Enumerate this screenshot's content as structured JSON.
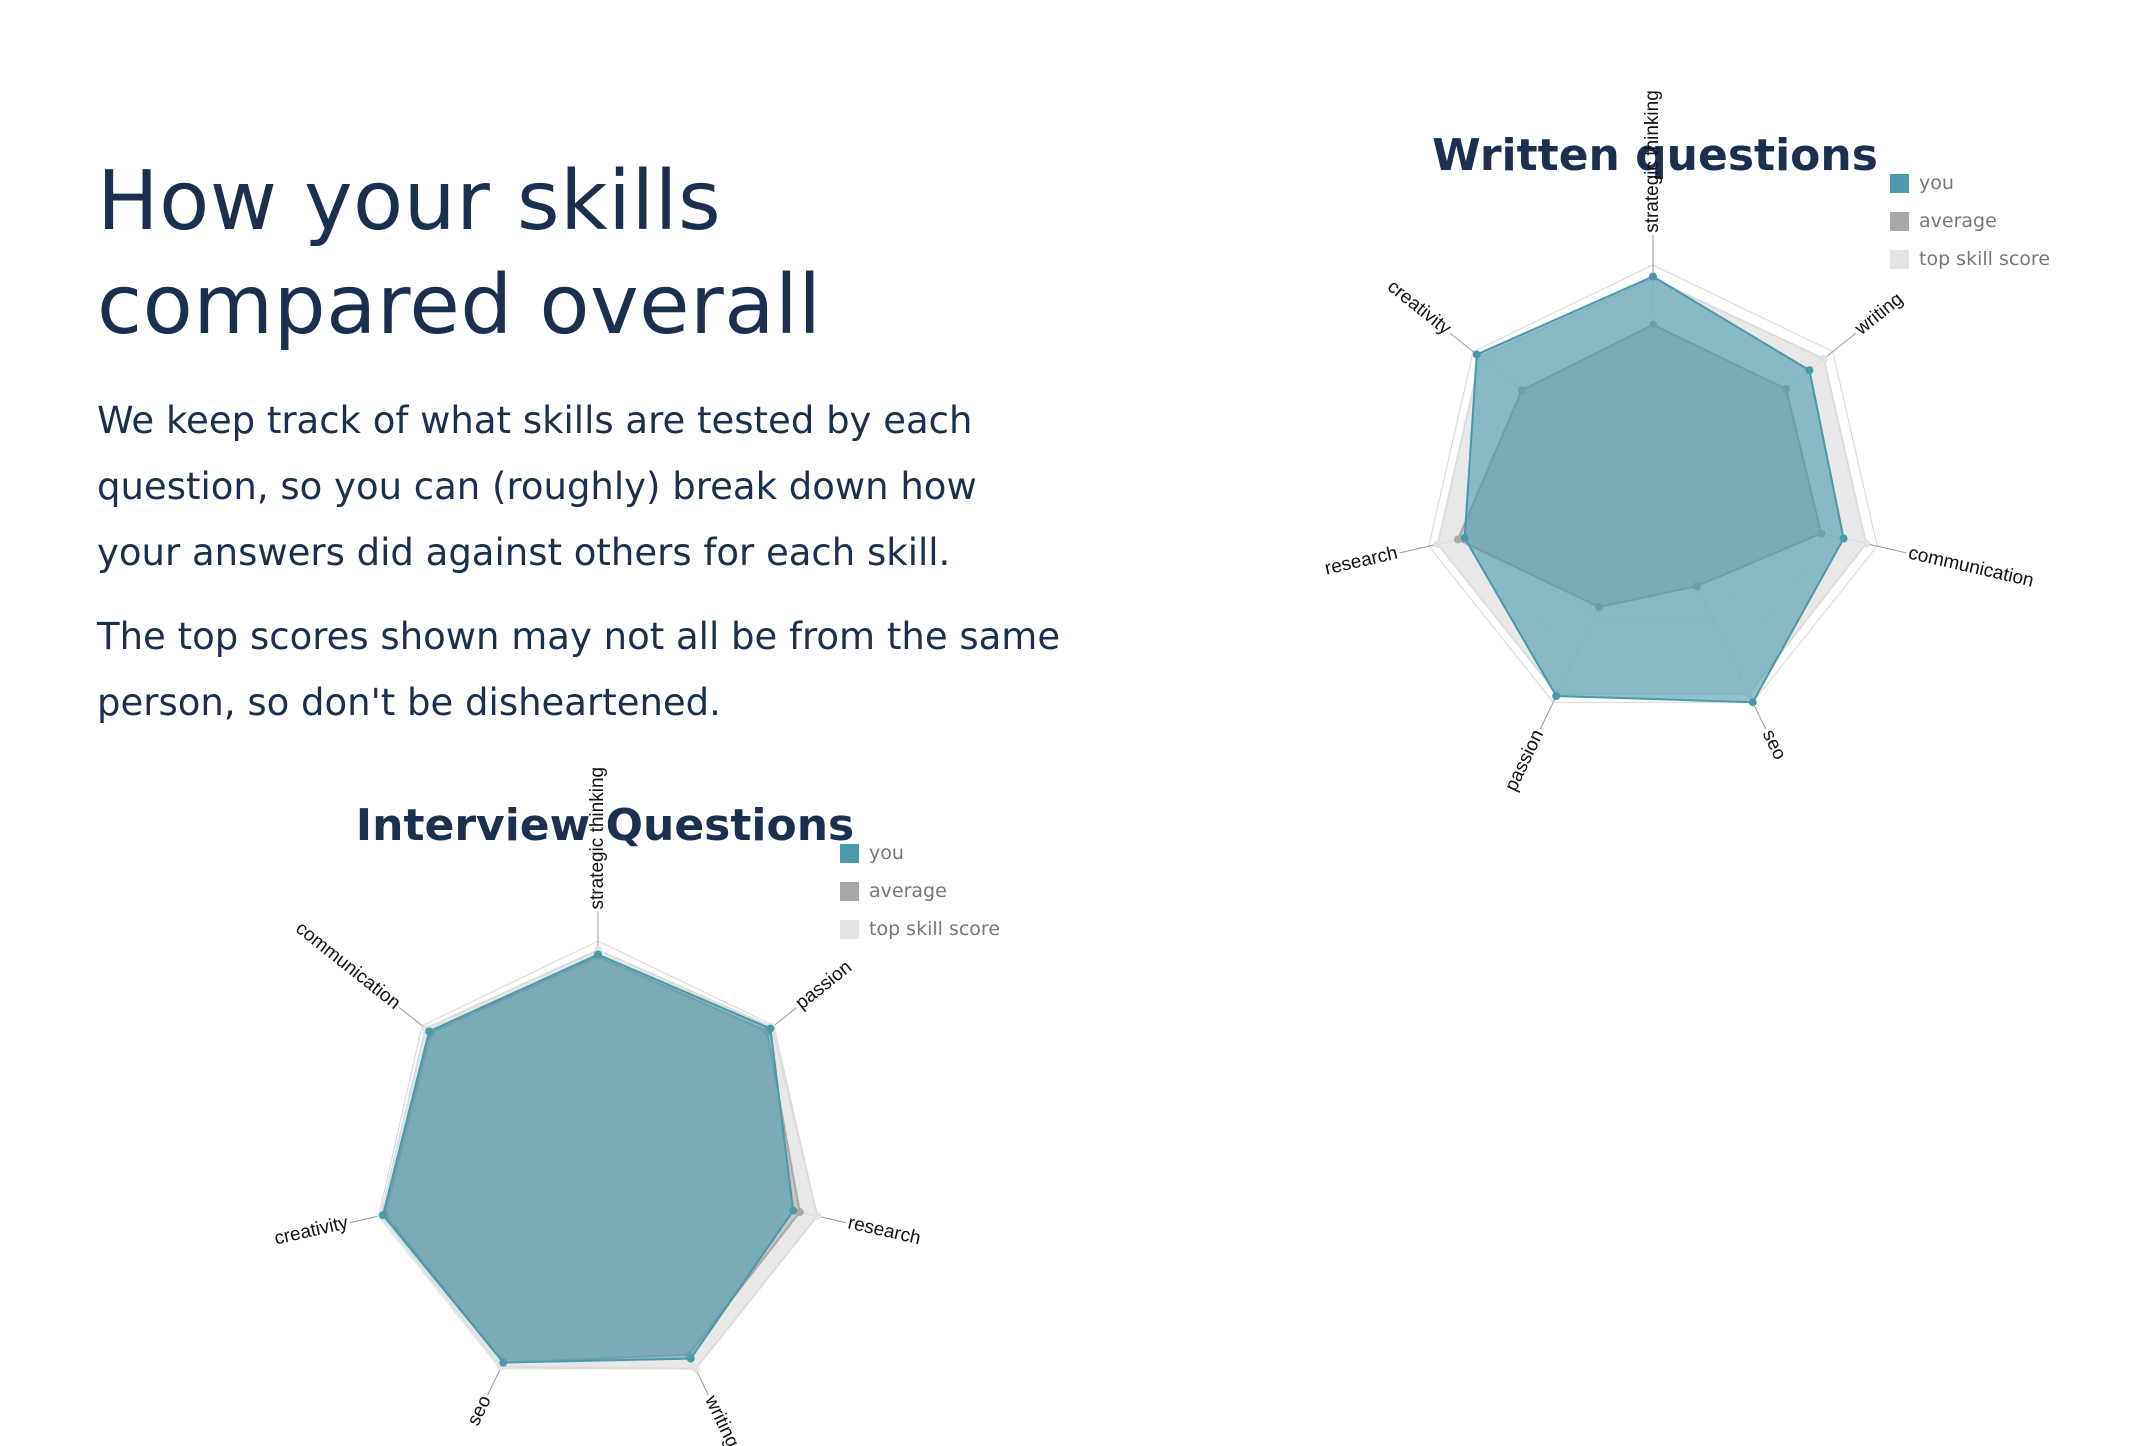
{
  "intro": {
    "title_line1": "How your skills",
    "title_line2": "compared overall",
    "paragraph1_lines": [
      "We keep track of what skills are tested by each",
      "question, so you can (roughly) break down how",
      "your answers did against others for each skill."
    ],
    "paragraph2_lines": [
      "The top scores shown may not all be from the same",
      "person, so don't be disheartened."
    ]
  },
  "colors": {
    "you": "#4a9aab",
    "average": "#a9a9a9",
    "top": "#e3e3e3",
    "text": "#1b2f4e"
  },
  "chart_data": [
    {
      "type": "radar",
      "title": "Written questions",
      "legend": [
        "you",
        "average",
        "top skill score"
      ],
      "legend_position": "top-right",
      "axes": [
        "strategic thinking",
        "writing",
        "communication",
        "seo",
        "passion",
        "research",
        "creativity"
      ],
      "range": [
        0,
        1
      ],
      "series": [
        {
          "name": "top skill score",
          "values": [
            0.94,
            0.95,
            0.95,
            0.96,
            0.96,
            0.96,
            0.96
          ]
        },
        {
          "name": "average",
          "values": [
            0.74,
            0.74,
            0.75,
            0.44,
            0.54,
            0.87,
            0.73
          ]
        },
        {
          "name": "you",
          "values": [
            0.95,
            0.87,
            0.85,
            1.0,
            0.97,
            0.84,
            0.98
          ]
        }
      ]
    },
    {
      "type": "radar",
      "title": "Interview Questions",
      "legend": [
        "you",
        "average",
        "top skill score"
      ],
      "legend_position": "top-right",
      "axes": [
        "strategic thinking",
        "passion",
        "research",
        "writing",
        "seo",
        "creativity",
        "communication"
      ],
      "range": [
        0,
        1
      ],
      "series": [
        {
          "name": "top skill score",
          "values": [
            0.96,
            0.99,
            1.0,
            1.0,
            0.99,
            0.99,
            0.98
          ]
        },
        {
          "name": "average",
          "values": [
            0.93,
            0.96,
            0.92,
            0.93,
            0.97,
            0.97,
            0.95
          ]
        },
        {
          "name": "you",
          "values": [
            0.94,
            0.98,
            0.89,
            0.95,
            0.97,
            0.98,
            0.96
          ]
        }
      ]
    }
  ]
}
